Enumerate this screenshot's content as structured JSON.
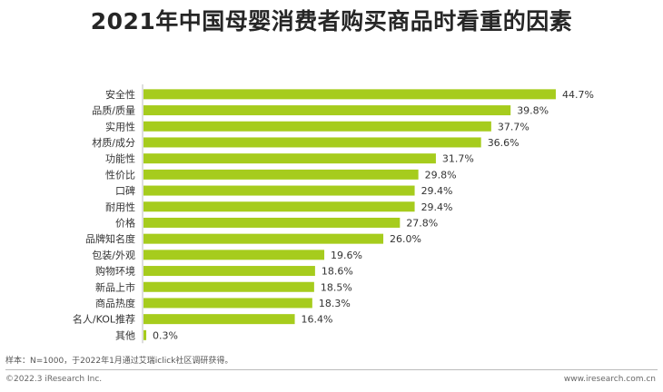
{
  "chart_data": {
    "type": "bar",
    "orientation": "horizontal",
    "title": "2021年中国母婴消费者购买商品时看重的因素",
    "categories": [
      "安全性",
      "品质/质量",
      "实用性",
      "材质/成分",
      "功能性",
      "性价比",
      "口碑",
      "耐用性",
      "价格",
      "品牌知名度",
      "包装/外观",
      "购物环境",
      "新品上市",
      "商品热度",
      "名人/KOL推荐",
      "其他"
    ],
    "values": [
      44.7,
      39.8,
      37.7,
      36.6,
      31.7,
      29.8,
      29.4,
      29.4,
      27.8,
      26.0,
      19.6,
      18.6,
      18.5,
      18.3,
      16.4,
      0.3
    ],
    "value_labels": [
      "44.7%",
      "39.8%",
      "37.7%",
      "36.6%",
      "31.7%",
      "29.8%",
      "29.4%",
      "29.4%",
      "27.8%",
      "26.0%",
      "19.6%",
      "18.6%",
      "18.5%",
      "18.3%",
      "16.4%",
      "0.3%"
    ],
    "unit": "%",
    "xlim": [
      0,
      45
    ],
    "grid": false,
    "bar_color": "#a6cc1d"
  },
  "footer": {
    "note": "样本：N=1000，于2022年1月通过艾瑞iclick社区调研获得。",
    "copyright": "©2022.3 iResearch Inc.",
    "website": "www.iresearch.com.cn"
  }
}
